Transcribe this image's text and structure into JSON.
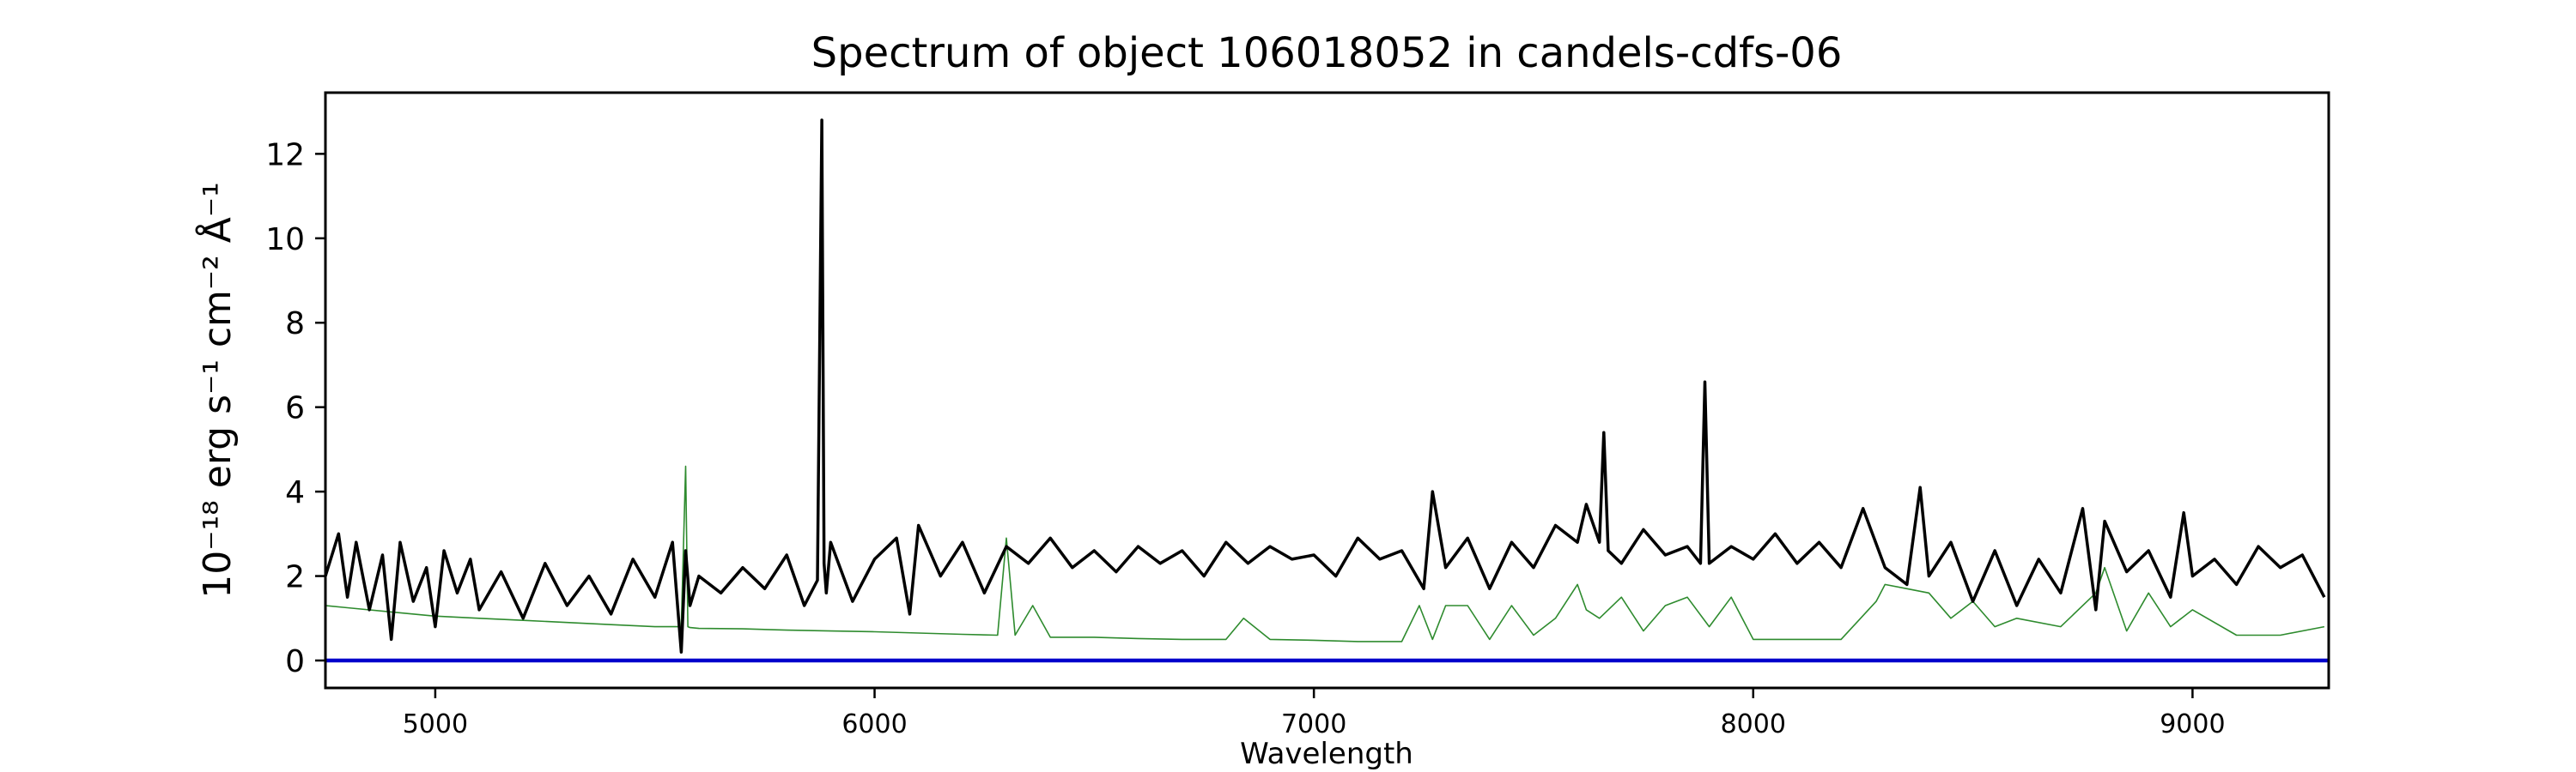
{
  "chart_data": {
    "type": "line",
    "title": "Spectrum of object 106018052 in candels-cdfs-06",
    "xlabel": "Wavelength",
    "ylabel": "10⁻¹⁸ erg s⁻¹ cm⁻² Å⁻¹",
    "xlim": [
      4750,
      9310
    ],
    "ylim": [
      -0.65,
      13.45
    ],
    "xticks": [
      5000,
      6000,
      7000,
      8000,
      9000
    ],
    "yticks": [
      0,
      2,
      4,
      6,
      8,
      10,
      12
    ],
    "grid": false,
    "series": [
      {
        "color": "#000000",
        "x": [
          4750,
          4780,
          4800,
          4820,
          4850,
          4880,
          4900,
          4920,
          4950,
          4980,
          5000,
          5020,
          5050,
          5080,
          5100,
          5150,
          5200,
          5250,
          5300,
          5350,
          5400,
          5450,
          5500,
          5540,
          5560,
          5570,
          5580,
          5600,
          5650,
          5700,
          5750,
          5800,
          5840,
          5870,
          5880,
          5885,
          5890,
          5900,
          5950,
          6000,
          6050,
          6080,
          6100,
          6150,
          6200,
          6250,
          6300,
          6350,
          6400,
          6450,
          6500,
          6550,
          6600,
          6650,
          6700,
          6750,
          6800,
          6850,
          6900,
          6950,
          7000,
          7050,
          7100,
          7150,
          7200,
          7250,
          7270,
          7300,
          7350,
          7400,
          7450,
          7500,
          7550,
          7600,
          7620,
          7650,
          7660,
          7670,
          7700,
          7750,
          7800,
          7850,
          7880,
          7890,
          7900,
          7950,
          8000,
          8050,
          8100,
          8150,
          8200,
          8250,
          8300,
          8350,
          8380,
          8400,
          8450,
          8500,
          8550,
          8600,
          8650,
          8700,
          8750,
          8780,
          8800,
          8850,
          8900,
          8950,
          8980,
          9000,
          9050,
          9100,
          9150,
          9200,
          9250,
          9300
        ],
        "values": [
          2.0,
          3.0,
          1.5,
          2.8,
          1.2,
          2.5,
          0.5,
          2.8,
          1.4,
          2.2,
          0.8,
          2.6,
          1.6,
          2.4,
          1.2,
          2.1,
          1.0,
          2.3,
          1.3,
          2.0,
          1.1,
          2.4,
          1.5,
          2.8,
          0.2,
          2.6,
          1.3,
          2.0,
          1.6,
          2.2,
          1.7,
          2.5,
          1.3,
          1.9,
          12.8,
          2.3,
          1.6,
          2.8,
          1.4,
          2.4,
          2.9,
          1.1,
          3.2,
          2.0,
          2.8,
          1.6,
          2.7,
          2.3,
          2.9,
          2.2,
          2.6,
          2.1,
          2.7,
          2.3,
          2.6,
          2.0,
          2.8,
          2.3,
          2.7,
          2.4,
          2.5,
          2.0,
          2.9,
          2.4,
          2.6,
          1.7,
          4.0,
          2.2,
          2.9,
          1.7,
          2.8,
          2.2,
          3.2,
          2.8,
          3.7,
          2.8,
          5.4,
          2.6,
          2.3,
          3.1,
          2.5,
          2.7,
          2.3,
          6.6,
          2.3,
          2.7,
          2.4,
          3.0,
          2.3,
          2.8,
          2.2,
          3.6,
          2.2,
          1.8,
          4.1,
          2.0,
          2.8,
          1.4,
          2.6,
          1.3,
          2.4,
          1.6,
          3.6,
          1.2,
          3.3,
          2.1,
          2.6,
          1.5,
          3.5,
          2.0,
          2.4,
          1.8,
          2.7,
          2.2,
          2.5,
          1.5
        ]
      },
      {
        "color": "#2e8b2e",
        "x": [
          4750,
          4800,
          4900,
          5000,
          5100,
          5200,
          5300,
          5400,
          5500,
          5560,
          5570,
          5575,
          5580,
          5600,
          5700,
          5800,
          5900,
          6000,
          6100,
          6200,
          6280,
          6300,
          6320,
          6360,
          6400,
          6500,
          6600,
          6700,
          6800,
          6840,
          6900,
          7000,
          7100,
          7200,
          7240,
          7270,
          7300,
          7350,
          7400,
          7450,
          7500,
          7550,
          7600,
          7620,
          7650,
          7700,
          7750,
          7800,
          7850,
          7900,
          7950,
          8000,
          8100,
          8200,
          8280,
          8300,
          8350,
          8400,
          8450,
          8500,
          8550,
          8600,
          8700,
          8780,
          8800,
          8850,
          8900,
          8950,
          9000,
          9100,
          9200,
          9300
        ],
        "values": [
          1.3,
          1.25,
          1.15,
          1.05,
          1.0,
          0.95,
          0.9,
          0.85,
          0.8,
          0.8,
          4.6,
          0.8,
          0.78,
          0.76,
          0.75,
          0.72,
          0.7,
          0.68,
          0.65,
          0.62,
          0.6,
          2.9,
          0.6,
          1.3,
          0.55,
          0.55,
          0.52,
          0.5,
          0.5,
          1.0,
          0.5,
          0.48,
          0.45,
          0.45,
          1.3,
          0.5,
          1.3,
          1.3,
          0.5,
          1.3,
          0.6,
          1.0,
          1.8,
          1.2,
          1.0,
          1.5,
          0.7,
          1.3,
          1.5,
          0.8,
          1.5,
          0.5,
          0.5,
          0.5,
          1.4,
          1.8,
          1.7,
          1.6,
          1.0,
          1.4,
          0.8,
          1.0,
          0.8,
          1.6,
          2.2,
          0.7,
          1.6,
          0.8,
          1.2,
          0.6,
          0.6,
          0.8
        ]
      },
      {
        "color": "#0000cc",
        "x": [
          4750,
          9310
        ],
        "values": [
          0,
          0
        ]
      }
    ]
  }
}
